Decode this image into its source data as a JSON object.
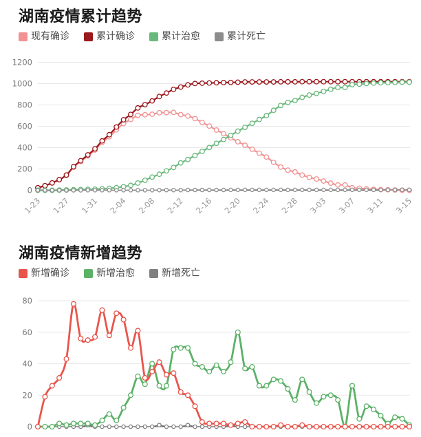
{
  "page": {
    "background": "#ffffff"
  },
  "chart_data": [
    {
      "type": "line",
      "title": "湖南疫情累计趋势",
      "xlabel": "",
      "ylabel": "",
      "ylim": [
        0,
        1200
      ],
      "yticks": [
        0,
        200,
        400,
        600,
        800,
        1000,
        1200
      ],
      "grid": true,
      "legend_position": "top",
      "marker": "circle",
      "x": [
        "1-23",
        "1-24",
        "1-25",
        "1-26",
        "1-27",
        "1-28",
        "1-29",
        "1-30",
        "1-31",
        "2-01",
        "2-02",
        "2-03",
        "2-04",
        "2-05",
        "2-06",
        "2-07",
        "2-08",
        "2-09",
        "2-10",
        "2-11",
        "2-12",
        "2-13",
        "2-14",
        "2-15",
        "2-16",
        "2-17",
        "2-18",
        "2-19",
        "2-20",
        "2-21",
        "2-22",
        "2-23",
        "2-24",
        "2-25",
        "2-26",
        "2-27",
        "2-28",
        "2-29",
        "3-01",
        "3-02",
        "3-03",
        "3-04",
        "3-05",
        "3-06",
        "3-07",
        "3-08",
        "3-09",
        "3-10",
        "3-11",
        "3-12",
        "3-13",
        "3-14",
        "3-15"
      ],
      "x_tick_labels": [
        "1-23",
        "1-27",
        "1-31",
        "2-04",
        "2-08",
        "2-12",
        "2-16",
        "2-20",
        "2-24",
        "2-28",
        "3-03",
        "3-07",
        "3-11",
        "3-15"
      ],
      "x_tick_labels_visible": true,
      "series": [
        {
          "key": "current-confirmed",
          "name": "现有确诊",
          "color": "#f29292",
          "values": [
            24,
            43,
            69,
            98,
            140,
            216,
            270,
            322,
            378,
            448,
            502,
            567,
            626,
            664,
            703,
            708,
            713,
            727,
            728,
            730,
            709,
            696,
            672,
            636,
            602,
            565,
            531,
            492,
            455,
            422,
            384,
            348,
            312,
            262,
            218,
            189,
            172,
            143,
            121,
            106,
            87,
            67,
            50,
            50,
            24,
            19,
            13,
            9,
            6,
            5,
            3,
            1,
            0
          ]
        },
        {
          "key": "total-confirmed",
          "name": "累计确诊",
          "color": "#9b181c",
          "values": [
            24,
            43,
            69,
            100,
            143,
            221,
            277,
            332,
            389,
            463,
            521,
            593,
            661,
            711,
            772,
            803,
            838,
            879,
            912,
            946,
            968,
            988,
            1001,
            1004,
            1006,
            1008,
            1010,
            1011,
            1013,
            1016,
            1016,
            1016,
            1016,
            1016,
            1017,
            1017,
            1017,
            1018,
            1018,
            1018,
            1018,
            1018,
            1018,
            1018,
            1018,
            1018,
            1018,
            1018,
            1018,
            1018,
            1018,
            1018,
            1018
          ]
        },
        {
          "key": "total-cured",
          "name": "累计治愈",
          "color": "#6ab97c",
          "values": [
            0,
            0,
            0,
            2,
            3,
            5,
            7,
            9,
            10,
            14,
            18,
            25,
            34,
            46,
            68,
            94,
            124,
            150,
            182,
            214,
            257,
            289,
            326,
            365,
            401,
            440,
            476,
            515,
            554,
            590,
            628,
            664,
            700,
            750,
            795,
            824,
            841,
            871,
            893,
            908,
            927,
            947,
            964,
            964,
            990,
            995,
            1001,
            1005,
            1008,
            1009,
            1011,
            1013,
            1014
          ]
        },
        {
          "key": "total-deaths",
          "name": "累计死亡",
          "color": "#8c8c8c",
          "values": [
            0,
            0,
            0,
            0,
            0,
            0,
            0,
            1,
            1,
            1,
            1,
            1,
            1,
            1,
            1,
            1,
            1,
            2,
            2,
            2,
            2,
            3,
            3,
            3,
            3,
            3,
            3,
            4,
            4,
            4,
            4,
            4,
            4,
            4,
            4,
            4,
            4,
            4,
            4,
            4,
            4,
            4,
            4,
            4,
            4,
            4,
            4,
            4,
            4,
            4,
            4,
            4,
            4
          ]
        }
      ]
    },
    {
      "type": "line",
      "title": "湖南疫情新增趋势",
      "xlabel": "",
      "ylabel": "",
      "ylim": [
        0,
        80
      ],
      "yticks": [
        0,
        20,
        40,
        60,
        80
      ],
      "grid": true,
      "legend_position": "top",
      "marker": "circle",
      "x": [
        "1-23",
        "1-24",
        "1-25",
        "1-26",
        "1-27",
        "1-28",
        "1-29",
        "1-30",
        "1-31",
        "2-01",
        "2-02",
        "2-03",
        "2-04",
        "2-05",
        "2-06",
        "2-07",
        "2-08",
        "2-09",
        "2-10",
        "2-11",
        "2-12",
        "2-13",
        "2-14",
        "2-15",
        "2-16",
        "2-17",
        "2-18",
        "2-19",
        "2-20",
        "2-21",
        "2-22",
        "2-23",
        "2-24",
        "2-25",
        "2-26",
        "2-27",
        "2-28",
        "2-29",
        "3-01",
        "3-02",
        "3-03",
        "3-04",
        "3-05",
        "3-06",
        "3-07",
        "3-08",
        "3-09",
        "3-10",
        "3-11",
        "3-12",
        "3-13",
        "3-14",
        "3-15"
      ],
      "x_tick_labels": [],
      "x_tick_labels_visible": false,
      "series": [
        {
          "key": "new-deaths",
          "name": "新增死亡",
          "color": "#7f7f7f",
          "values": [
            0,
            0,
            0,
            0,
            0,
            0,
            0,
            1,
            0,
            0,
            0,
            0,
            0,
            0,
            0,
            0,
            0,
            1,
            0,
            0,
            0,
            1,
            0,
            0,
            0,
            0,
            0,
            1,
            0,
            0,
            0,
            0,
            0,
            0,
            0,
            0,
            0,
            0,
            0,
            0,
            0,
            0,
            0,
            0,
            0,
            0,
            0,
            0,
            0,
            0,
            0,
            0,
            0
          ]
        },
        {
          "key": "new-cured",
          "name": "新增治愈",
          "color": "#5cb167",
          "values": [
            0,
            0,
            0,
            2,
            1,
            2,
            2,
            2,
            1,
            4,
            8,
            4,
            12,
            20,
            32,
            27,
            40,
            26,
            26,
            49,
            50,
            50,
            40,
            38,
            35,
            39,
            35,
            41,
            60,
            37,
            38,
            26,
            26,
            30,
            29,
            24,
            17,
            30,
            22,
            15,
            19,
            20,
            17,
            0,
            26,
            5,
            13,
            11,
            7,
            2,
            6,
            5,
            1
          ]
        },
        {
          "key": "new-confirmed",
          "name": "新增确诊",
          "color": "#e8554c",
          "values": [
            0,
            19,
            26,
            31,
            43,
            78,
            56,
            55,
            57,
            74,
            58,
            72,
            68,
            50,
            61,
            31,
            35,
            41,
            33,
            34,
            22,
            20,
            13,
            3,
            2,
            2,
            2,
            1,
            2,
            3,
            0,
            0,
            0,
            0,
            1,
            0,
            0,
            1,
            0,
            0,
            0,
            0,
            0,
            0,
            0,
            0,
            0,
            0,
            0,
            0,
            0,
            0,
            0
          ]
        }
      ],
      "legend_order": [
        "新增确诊",
        "新增治愈",
        "新增死亡"
      ]
    }
  ],
  "style": {
    "grid_color": "#e8e8e8",
    "axis_color": "#444444",
    "y_tick_color": "#7a7a7a",
    "x_tick_color": "#999999",
    "title_color": "#1a1a1a",
    "legend_text_color": "#4a4a4a"
  }
}
